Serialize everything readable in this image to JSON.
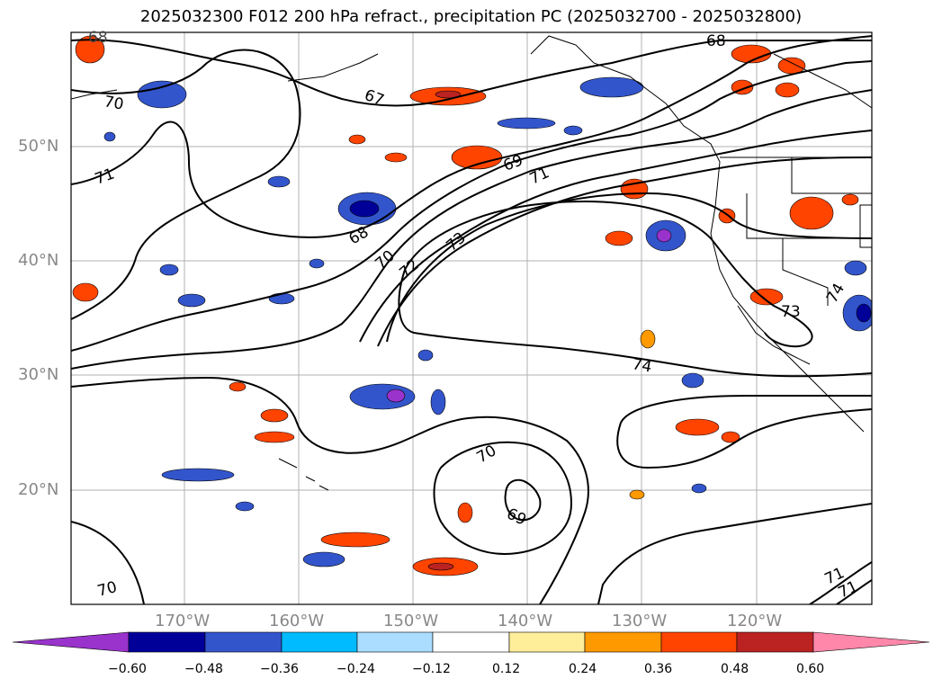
{
  "title": "2025032300 F012 200 hPa refract., precipitation PC (2025032700 - 2025032800)",
  "lat_labels": [
    "50°N",
    "40°N",
    "30°N",
    "20°N"
  ],
  "lon_labels": [
    "170°W",
    "160°W",
    "150°W",
    "140°W",
    "130°W",
    "120°W"
  ],
  "contour_labels": [
    "68",
    "70",
    "71",
    "67",
    "69",
    "71",
    "68",
    "70",
    "72",
    "73",
    "74",
    "73",
    "70",
    "69",
    "70",
    "68",
    "71",
    "71",
    "74"
  ],
  "colorbar": {
    "ticks": [
      "−0.60",
      "−0.48",
      "−0.36",
      "−0.24",
      "−0.12",
      "0.12",
      "0.24",
      "0.36",
      "0.48",
      "0.60"
    ],
    "colors": [
      "#9933cc",
      "#000099",
      "#3355cc",
      "#00bbff",
      "#aaddff",
      "#ffffff",
      "#ffee99",
      "#ff9900",
      "#ff4400",
      "#bb2222",
      "#ff88aa"
    ]
  },
  "chart_data": {
    "type": "heatmap",
    "title": "2025032300 F012 200 hPa refract., precipitation PC (2025032700 - 2025032800)",
    "lon_range": [
      -180,
      -110
    ],
    "lat_range": [
      10,
      60
    ],
    "grid": true,
    "legend_position": "bottom",
    "color_levels": [
      -0.6,
      -0.48,
      -0.36,
      -0.24,
      -0.12,
      0.12,
      0.24,
      0.36,
      0.48,
      0.6
    ],
    "contour_levels": [
      67,
      68,
      69,
      70,
      71,
      72,
      73,
      74
    ]
  }
}
